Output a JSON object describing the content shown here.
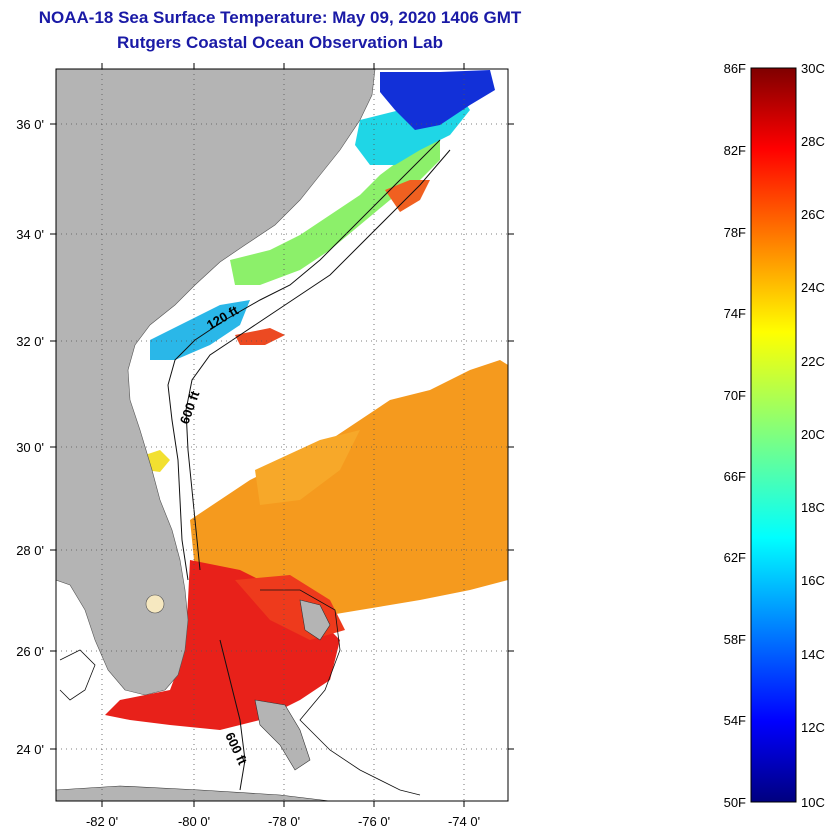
{
  "header": {
    "title": "NOAA-18 Sea Surface Temperature:  May 09, 2020 1406 GMT",
    "subtitle": "Rutgers Coastal Ocean Observation Lab"
  },
  "map": {
    "lat_labels": [
      "36 0'",
      "34 0'",
      "32 0'",
      "30 0'",
      "28 0'",
      "26 0'",
      "24 0'"
    ],
    "lon_labels": [
      "-82 0'",
      "-80 0'",
      "-78 0'",
      "-76 0'",
      "-74 0'"
    ],
    "contour_labels": [
      "120 ft",
      "600 ft",
      "600 ft"
    ]
  },
  "colorbar": {
    "fahrenheit_labels": [
      "86F",
      "82F",
      "78F",
      "74F",
      "70F",
      "66F",
      "62F",
      "58F",
      "54F",
      "50F"
    ],
    "celsius_labels": [
      "30C",
      "28C",
      "26C",
      "24C",
      "22C",
      "20C",
      "18C",
      "16C",
      "14C",
      "12C",
      "10C"
    ]
  },
  "colors": {
    "title": "#1a1aa6",
    "land": "#b4b4b4",
    "cold": "#00007f",
    "warm": "#7f0000"
  }
}
